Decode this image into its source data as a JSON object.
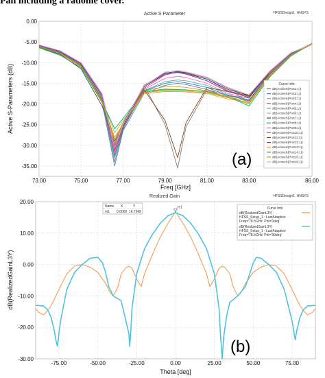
{
  "header_fragment": "Pall including a radome cover.",
  "chart_data": [
    {
      "type": "line",
      "title": "Active S Parameter",
      "design_tag": "HFSSDesign1",
      "tag_suffix": "ANSYS",
      "xlabel": "Freq [GHz]",
      "ylabel": "Active S-Parameters (dB)",
      "xlim": [
        73,
        86
      ],
      "ylim": [
        -37.5,
        0
      ],
      "xticks": [
        "73.00",
        "75.00",
        "77.00",
        "79.00",
        "81.00",
        "83.00",
        "86.00"
      ],
      "xtick_values": [
        73,
        75,
        77,
        79,
        81,
        83,
        86
      ],
      "yticks": [
        "0.00",
        "-5.00",
        "-10.00",
        "-15.00",
        "-20.00",
        "-25.00",
        "-30.00",
        "-35.00"
      ],
      "ytick_values": [
        0,
        -5,
        -10,
        -15,
        -20,
        -25,
        -30,
        -35
      ],
      "grid": true,
      "legend_title": "Curve Info",
      "legend_position": "right",
      "panel_label": "(a)",
      "x": [
        73,
        74,
        75,
        76,
        76.6,
        77,
        78,
        79,
        79.6,
        80,
        81,
        82,
        83,
        84,
        85,
        86
      ],
      "series": [
        {
          "name": "dB(ActiveS(Port1:1))",
          "color": "#c0504d",
          "values": [
            -5.8,
            -7.3,
            -10.2,
            -17.8,
            -31.5,
            -25.5,
            -16.2,
            -13.0,
            -12.3,
            -12.7,
            -14.0,
            -16.8,
            -18.2,
            -12.2,
            -7.8,
            -5.5
          ]
        },
        {
          "name": "dB(ActiveS(Port2:1))",
          "color": "#4f81bd",
          "values": [
            -5.9,
            -7.6,
            -10.8,
            -19.5,
            -35.0,
            -26.5,
            -17.5,
            -15.5,
            -15.0,
            -15.3,
            -16.5,
            -18.5,
            -19.2,
            -12.9,
            -8.0,
            -5.3
          ]
        },
        {
          "name": "dB(ActiveS(Port3:1))",
          "color": "#9bbb59",
          "values": [
            -6.2,
            -7.8,
            -10.8,
            -19.0,
            -27.0,
            -24.0,
            -17.2,
            -16.8,
            -16.8,
            -16.9,
            -17.3,
            -18.5,
            -20.0,
            -13.2,
            -8.3,
            -5.4
          ]
        },
        {
          "name": "dB(ActiveS(Port4:1))",
          "color": "#8064a2",
          "values": [
            -5.7,
            -7.2,
            -10.0,
            -17.5,
            -30.0,
            -24.5,
            -15.8,
            -12.6,
            -12.1,
            -12.4,
            -13.7,
            -16.2,
            -18.0,
            -12.0,
            -7.6,
            -5.6
          ]
        },
        {
          "name": "dB(ActiveS(Port5:1))",
          "color": "#4bacc6",
          "values": [
            -6.0,
            -7.5,
            -10.5,
            -18.5,
            -33.0,
            -26.0,
            -16.8,
            -14.6,
            -14.2,
            -14.4,
            -15.5,
            -17.8,
            -19.0,
            -12.6,
            -7.9,
            -5.4
          ]
        },
        {
          "name": "dB(ActiveS(Port6:1))",
          "color": "#f79646",
          "values": [
            -6.1,
            -7.9,
            -11.0,
            -19.8,
            -28.0,
            -24.8,
            -17.5,
            -17.0,
            -17.0,
            -17.1,
            -17.5,
            -18.8,
            -19.6,
            -13.0,
            -8.2,
            -5.3
          ]
        },
        {
          "name": "dB(ActiveS(Port7:1))",
          "color": "#2c4d75",
          "values": [
            -6.3,
            -8.0,
            -11.5,
            -20.5,
            -29.0,
            -25.0,
            -15.5,
            -12.5,
            -12.2,
            -12.5,
            -14.0,
            -16.5,
            -17.9,
            -12.4,
            -8.0,
            -5.6
          ]
        },
        {
          "name": "dB(ActiveS(Port8:1))",
          "color": "#00b050",
          "values": [
            -6.4,
            -8.2,
            -11.2,
            -19.5,
            -26.0,
            -23.5,
            -17.0,
            -16.4,
            -16.5,
            -16.6,
            -17.0,
            -18.2,
            -20.5,
            -13.4,
            -8.4,
            -5.4
          ]
        },
        {
          "name": "dB(ActiveS(Port9:1))",
          "color": "#ff66cc",
          "values": [
            -5.9,
            -7.4,
            -10.4,
            -18.2,
            -32.0,
            -25.8,
            -16.5,
            -13.8,
            -13.3,
            -13.6,
            -15.0,
            -17.5,
            -18.6,
            -12.4,
            -7.8,
            -5.5
          ]
        },
        {
          "name": "dB(ActiveS(Port10:1))",
          "color": "#7f7f7f",
          "values": [
            -6.0,
            -7.5,
            -10.6,
            -18.8,
            -34.0,
            -26.2,
            -15.5,
            -25.0,
            -35.5,
            -25.5,
            -16.5,
            -18.0,
            -18.5,
            -12.8,
            -8.0,
            -5.4
          ]
        },
        {
          "name": "dB(ActiveS(Port11:1))",
          "color": "#8b4513",
          "values": [
            -6.2,
            -7.7,
            -10.8,
            -19.0,
            -30.5,
            -25.2,
            -16.5,
            -24.0,
            -33.0,
            -24.5,
            -16.0,
            -17.0,
            -18.0,
            -12.6,
            -8.1,
            -5.5
          ]
        },
        {
          "name": "dB(ActiveS(Port12:1))",
          "color": "#7030a0",
          "values": [
            -5.8,
            -7.3,
            -10.3,
            -18.0,
            -31.0,
            -25.3,
            -15.8,
            -12.8,
            -12.4,
            -12.8,
            -14.4,
            -17.0,
            -18.4,
            -12.1,
            -7.7,
            -5.5
          ]
        },
        {
          "name": "dB(ActiveS(Port13:1))",
          "color": "#e69138",
          "values": [
            -6.1,
            -7.7,
            -10.7,
            -19.2,
            -29.5,
            -24.8,
            -16.8,
            -15.8,
            -15.8,
            -16.0,
            -16.8,
            -18.3,
            -19.4,
            -12.9,
            -8.1,
            -5.4
          ]
        },
        {
          "name": "dB(ActiveS(Port14:1))",
          "color": "#31859b",
          "values": [
            -6.0,
            -7.6,
            -10.6,
            -18.9,
            -32.5,
            -25.9,
            -16.9,
            -15.0,
            -14.6,
            -14.9,
            -16.0,
            -18.0,
            -19.1,
            -12.7,
            -8.0,
            -5.4
          ]
        },
        {
          "name": "dB(ActiveS(Port15:1))",
          "color": "#c9a000",
          "values": [
            -6.2,
            -7.8,
            -10.9,
            -19.4,
            -28.5,
            -24.6,
            -17.3,
            -16.6,
            -16.6,
            -16.7,
            -17.1,
            -18.4,
            -19.8,
            -13.1,
            -8.2,
            -5.4
          ]
        },
        {
          "name": "dB(ActiveS(Port16:1))",
          "color": "#e6a8b8",
          "values": [
            -5.7,
            -7.1,
            -10.0,
            -17.6,
            -30.8,
            -25.0,
            -15.6,
            -12.3,
            -11.9,
            -12.2,
            -13.5,
            -16.0,
            -17.8,
            -12.0,
            -7.6,
            -5.6
          ]
        }
      ]
    },
    {
      "type": "line",
      "title": "Realized Gain",
      "design_tag": "HFSSDesign1",
      "tag_suffix": "ANSYS",
      "xlabel": "Theta [deg]",
      "ylabel": "dB(RealizedGainL3Y)",
      "xlim": [
        -90,
        90
      ],
      "ylim": [
        -30,
        20
      ],
      "xticks": [
        "-75.00",
        "-50.00",
        "-25.00",
        "0.00",
        "25.00",
        "50.00",
        "75.00"
      ],
      "xtick_values": [
        -75,
        -50,
        -25,
        0,
        25,
        50,
        75
      ],
      "yticks": [
        "20.00",
        "10.00",
        "0.00",
        "-10.00",
        "-20.00",
        "-30.00"
      ],
      "ytick_values": [
        20,
        10,
        0,
        -10,
        -20,
        -30
      ],
      "grid": true,
      "panel_label": "(b)",
      "marker": {
        "header": [
          "Name",
          "X",
          "Y"
        ],
        "row": [
          "m1",
          "0.0000",
          "16.7968"
        ],
        "label": "m1",
        "x": 0,
        "y": 16.7968
      },
      "legend": {
        "title": "Curve Info",
        "position": "top-right",
        "entries": [
          {
            "line1": "dB(RealizedGainL3Y)",
            "line2": "HFSS_Setup_1 : LastAdaptive",
            "line3": "Freq='78.5GHz' Phi='0deg'"
          },
          {
            "line1": "dB(RealizedGainL3Y)",
            "line2": "HFSS_Setup_1 : LastAdaptive",
            "line3": "Freq='78.5GHz' Phi='90deg'"
          }
        ]
      },
      "series": [
        {
          "color": "#f4a460",
          "x": [
            -90,
            -88,
            -85,
            -82,
            -80,
            -75,
            -70,
            -65,
            -60,
            -55,
            -50,
            -45,
            -42,
            -40,
            -37,
            -35,
            -32,
            -30,
            -28,
            -26,
            -24,
            -22,
            -20,
            -15,
            -10,
            -5,
            0,
            5,
            10,
            15,
            20,
            22,
            24,
            26,
            28,
            30,
            32,
            35,
            37,
            40,
            42,
            45,
            50,
            55,
            60,
            65,
            70,
            75,
            80,
            82,
            85,
            88,
            90
          ],
          "y": [
            -14,
            -15.2,
            -16,
            -14.5,
            -13,
            -8,
            -3,
            -0.5,
            0,
            -0.8,
            -2.5,
            -6,
            -9,
            -10,
            -7,
            -3,
            -1,
            -0.5,
            -1.2,
            -3.5,
            -5.5,
            -7,
            -3,
            3,
            8.5,
            13,
            16.8,
            13,
            8.5,
            3,
            -3,
            -7,
            -5.5,
            -3.5,
            -1.2,
            -0.5,
            -1,
            -3,
            -7,
            -10,
            -9,
            -6,
            -2.5,
            -0.8,
            0,
            -0.5,
            -3,
            -8,
            -13,
            -14.5,
            -16,
            -15.2,
            -14
          ]
        },
        {
          "color": "#4dc3e0",
          "x": [
            -90,
            -85,
            -82,
            -80,
            -78,
            -77,
            -76,
            -74,
            -70,
            -65,
            -60,
            -55,
            -50,
            -47,
            -45,
            -43,
            -40,
            -35,
            -30,
            -29.5,
            -29,
            -28,
            -25,
            -20,
            -15,
            -10,
            -5,
            0,
            5,
            10,
            15,
            20,
            25,
            28,
            29,
            29.5,
            30,
            31,
            33,
            35,
            40,
            45,
            48,
            50,
            52,
            55,
            60,
            65,
            70,
            75,
            76,
            77,
            78,
            80,
            82,
            85,
            90
          ],
          "y": [
            -13,
            -13.2,
            -14.5,
            -17,
            -21,
            -24,
            -26,
            -18,
            -8,
            -2.5,
            0,
            2,
            2.3,
            0.5,
            -2.5,
            -7,
            -10,
            -11.5,
            -22,
            -26,
            -23,
            -14,
            -3,
            5,
            9.5,
            13,
            15.5,
            16.5,
            15.5,
            13,
            9.5,
            5,
            -3,
            -14,
            -23,
            -26,
            -30,
            -23,
            -16,
            -12,
            -10,
            -7,
            -2.5,
            0.5,
            2.3,
            2,
            0,
            -2.5,
            -8,
            -18,
            -21,
            -24,
            -21,
            -17,
            -14.5,
            -13.2,
            -13
          ]
        }
      ]
    }
  ]
}
